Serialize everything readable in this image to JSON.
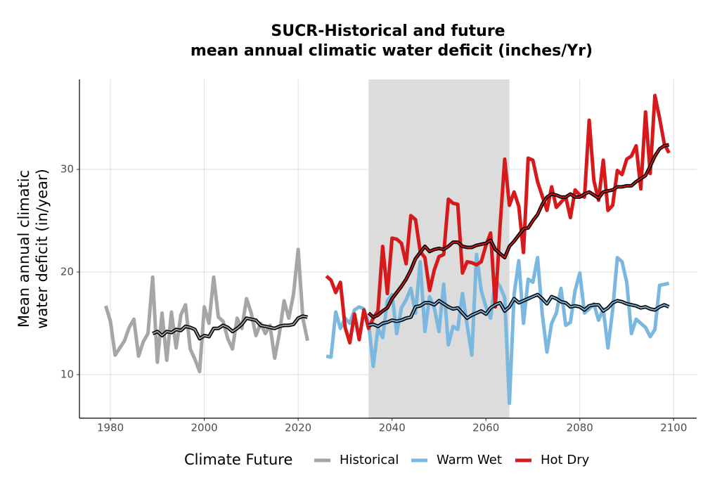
{
  "chart_data": {
    "type": "line",
    "title": [
      "SUCR-Historical and future",
      "mean annual climatic water deficit (inches/Yr)"
    ],
    "y_label": [
      "Mean annual climatic",
      "water deficit (in/year)"
    ],
    "legend_title": "Climate Future",
    "legend_position": "bottom",
    "grid": true,
    "shaded_xrange": [
      2035,
      2065
    ],
    "xlim": [
      1973.4,
      2104.9
    ],
    "ylim": [
      5.75,
      38.77
    ],
    "xticks": [
      1980,
      2000,
      2020,
      2040,
      2060,
      2080,
      2100
    ],
    "yticks": [
      10,
      20,
      30
    ],
    "series": [
      {
        "name": "Historical",
        "color": "#a6a6a6",
        "x": [
          1979,
          1980,
          1981,
          1982,
          1983,
          1984,
          1985,
          1986,
          1987,
          1988,
          1989,
          1990,
          1991,
          1992,
          1993,
          1994,
          1995,
          1996,
          1997,
          1998,
          1999,
          2000,
          2001,
          2002,
          2003,
          2004,
          2005,
          2006,
          2007,
          2008,
          2009,
          2010,
          2011,
          2012,
          2013,
          2014,
          2015,
          2016,
          2017,
          2018,
          2019,
          2020,
          2021,
          2022
        ],
        "values": [
          16.7,
          15.2,
          11.9,
          12.6,
          13.3,
          14.6,
          15.4,
          11.8,
          13.2,
          14.0,
          19.5,
          11.2,
          16.0,
          11.4,
          16.1,
          12.6,
          15.8,
          16.8,
          12.5,
          11.5,
          10.3,
          16.6,
          15.0,
          19.5,
          15.6,
          15.2,
          13.5,
          12.5,
          15.5,
          14.5,
          17.4,
          16.0,
          13.8,
          15.0,
          14.0,
          14.8,
          11.6,
          14.0,
          17.2,
          15.5,
          17.8,
          22.2,
          15.5,
          13.3
        ],
        "mean_x": [
          1989,
          1990,
          1991,
          1992,
          1993,
          1994,
          1995,
          1996,
          1997,
          1998,
          1999,
          2000,
          2001,
          2002,
          2003,
          2004,
          2005,
          2006,
          2007,
          2008,
          2009,
          2010,
          2011,
          2012,
          2013,
          2014,
          2015,
          2016,
          2017,
          2018,
          2019,
          2020,
          2021,
          2022
        ],
        "mean_values": [
          14.0,
          14.2,
          13.8,
          14.2,
          14.1,
          14.4,
          14.3,
          14.7,
          14.6,
          14.4,
          13.5,
          13.8,
          13.7,
          14.5,
          14.5,
          14.8,
          14.6,
          14.2,
          14.5,
          14.9,
          15.5,
          15.4,
          15.3,
          14.8,
          14.7,
          14.6,
          14.5,
          14.7,
          14.8,
          14.8,
          14.9,
          15.5,
          15.7,
          15.6
        ]
      },
      {
        "name": "Warm Wet",
        "color": "#7bb8e0",
        "x": [
          2026,
          2027,
          2028,
          2029,
          2030,
          2031,
          2032,
          2033,
          2034,
          2035,
          2036,
          2037,
          2038,
          2039,
          2040,
          2041,
          2042,
          2043,
          2044,
          2045,
          2046,
          2047,
          2048,
          2049,
          2050,
          2051,
          2052,
          2053,
          2054,
          2055,
          2056,
          2057,
          2058,
          2059,
          2060,
          2061,
          2062,
          2063,
          2064,
          2065,
          2066,
          2067,
          2068,
          2069,
          2070,
          2071,
          2072,
          2073,
          2074,
          2075,
          2076,
          2077,
          2078,
          2079,
          2080,
          2081,
          2082,
          2083,
          2084,
          2085,
          2086,
          2087,
          2088,
          2089,
          2090,
          2091,
          2092,
          2093,
          2094,
          2095,
          2096,
          2097,
          2098,
          2099
        ],
        "values": [
          11.8,
          11.7,
          16.1,
          14.5,
          15.5,
          15.0,
          16.3,
          16.6,
          16.4,
          15.0,
          10.8,
          14.5,
          13.6,
          17.2,
          17.8,
          14.0,
          16.5,
          17.3,
          18.4,
          16.0,
          21.0,
          14.2,
          17.6,
          16.5,
          14.2,
          18.8,
          12.9,
          14.7,
          14.4,
          17.9,
          14.8,
          11.9,
          21.7,
          18.2,
          16.6,
          15.5,
          19.2,
          18.6,
          17.5,
          7.2,
          17.8,
          21.1,
          15.0,
          19.3,
          19.0,
          21.4,
          15.9,
          12.2,
          15.0,
          16.0,
          18.4,
          14.8,
          15.1,
          18.2,
          19.9,
          16.0,
          16.4,
          16.9,
          15.3,
          16.4,
          12.6,
          16.3,
          21.4,
          21.0,
          19.0,
          14.0,
          15.4,
          15.0,
          14.6,
          13.7,
          14.4,
          18.7,
          18.8,
          18.9
        ],
        "mean_x": [
          2035,
          2036,
          2037,
          2038,
          2039,
          2040,
          2041,
          2042,
          2043,
          2044,
          2045,
          2046,
          2047,
          2048,
          2049,
          2050,
          2051,
          2052,
          2053,
          2054,
          2055,
          2056,
          2057,
          2058,
          2059,
          2060,
          2061,
          2062,
          2063,
          2064,
          2065,
          2066,
          2067,
          2068,
          2069,
          2070,
          2071,
          2072,
          2073,
          2074,
          2075,
          2076,
          2077,
          2078,
          2079,
          2080,
          2081,
          2082,
          2083,
          2084,
          2085,
          2086,
          2087,
          2088,
          2089,
          2090,
          2091,
          2092,
          2093,
          2094,
          2095,
          2096,
          2097,
          2098,
          2099
        ],
        "mean_values": [
          14.8,
          14.9,
          14.7,
          15.0,
          15.1,
          15.3,
          15.2,
          15.3,
          15.5,
          15.6,
          16.6,
          16.7,
          17.0,
          17.0,
          16.8,
          17.2,
          16.9,
          16.6,
          16.4,
          16.5,
          16.0,
          15.5,
          15.8,
          16.0,
          16.2,
          15.9,
          16.5,
          16.8,
          17.0,
          16.2,
          16.6,
          17.4,
          17.0,
          17.2,
          17.4,
          17.6,
          17.8,
          17.4,
          16.9,
          17.6,
          17.4,
          17.1,
          17.0,
          16.6,
          16.7,
          16.6,
          16.3,
          16.7,
          16.8,
          16.8,
          16.2,
          16.5,
          17.0,
          17.2,
          17.1,
          16.9,
          16.8,
          16.7,
          16.5,
          16.6,
          16.4,
          16.3,
          16.6,
          16.8,
          16.6
        ]
      },
      {
        "name": "Hot Dry",
        "color": "#d7191c",
        "x": [
          2026,
          2027,
          2028,
          2029,
          2030,
          2031,
          2032,
          2033,
          2034,
          2035,
          2036,
          2037,
          2038,
          2039,
          2040,
          2041,
          2042,
          2043,
          2044,
          2045,
          2046,
          2047,
          2048,
          2049,
          2050,
          2051,
          2052,
          2053,
          2054,
          2055,
          2056,
          2057,
          2058,
          2059,
          2060,
          2061,
          2062,
          2063,
          2064,
          2065,
          2066,
          2067,
          2068,
          2069,
          2070,
          2071,
          2072,
          2073,
          2074,
          2075,
          2076,
          2077,
          2078,
          2079,
          2080,
          2081,
          2082,
          2083,
          2084,
          2085,
          2086,
          2087,
          2088,
          2089,
          2090,
          2091,
          2092,
          2093,
          2094,
          2095,
          2096,
          2097,
          2098,
          2099
        ],
        "values": [
          19.6,
          19.2,
          18.0,
          19.0,
          14.6,
          13.1,
          15.9,
          13.4,
          16.3,
          14.5,
          15.5,
          16.2,
          22.5,
          17.9,
          23.3,
          23.2,
          22.8,
          20.8,
          25.5,
          25.1,
          22.0,
          21.4,
          18.2,
          20.2,
          21.5,
          21.7,
          27.1,
          26.7,
          26.6,
          19.9,
          21.0,
          20.9,
          20.7,
          21.0,
          22.6,
          23.8,
          16.6,
          24.4,
          31.0,
          26.5,
          27.8,
          26.4,
          21.9,
          31.1,
          30.9,
          28.8,
          27.4,
          26.0,
          28.3,
          26.3,
          26.8,
          27.3,
          25.3,
          28.0,
          27.5,
          27.3,
          34.8,
          28.9,
          27.0,
          30.9,
          26.0,
          26.5,
          29.9,
          29.5,
          31.0,
          31.3,
          32.3,
          28.1,
          35.6,
          29.6,
          37.2,
          35.0,
          32.5,
          31.6
        ],
        "mean_x": [
          2035,
          2036,
          2037,
          2038,
          2039,
          2040,
          2041,
          2042,
          2043,
          2044,
          2045,
          2046,
          2047,
          2048,
          2049,
          2050,
          2051,
          2052,
          2053,
          2054,
          2055,
          2056,
          2057,
          2058,
          2059,
          2060,
          2061,
          2062,
          2063,
          2064,
          2065,
          2066,
          2067,
          2068,
          2069,
          2070,
          2071,
          2072,
          2073,
          2074,
          2075,
          2076,
          2077,
          2078,
          2079,
          2080,
          2081,
          2082,
          2083,
          2084,
          2085,
          2086,
          2087,
          2088,
          2089,
          2090,
          2091,
          2092,
          2093,
          2094,
          2095,
          2096,
          2097,
          2098,
          2099
        ],
        "mean_values": [
          16.0,
          15.6,
          15.8,
          16.2,
          16.5,
          17.4,
          18.0,
          18.6,
          19.3,
          20.2,
          21.3,
          21.9,
          22.5,
          22.0,
          22.2,
          22.3,
          22.2,
          22.5,
          22.9,
          22.9,
          22.5,
          22.4,
          22.4,
          22.6,
          22.7,
          22.8,
          23.1,
          22.2,
          21.8,
          21.4,
          22.5,
          23.0,
          23.6,
          24.2,
          24.3,
          25.0,
          25.6,
          26.6,
          27.3,
          27.6,
          27.5,
          27.3,
          27.3,
          27.6,
          27.3,
          27.3,
          27.6,
          27.8,
          27.5,
          27.2,
          27.8,
          27.9,
          28.0,
          28.3,
          28.3,
          28.4,
          28.4,
          28.8,
          29.1,
          29.4,
          30.3,
          31.3,
          32.0,
          32.3,
          32.4
        ]
      }
    ]
  }
}
